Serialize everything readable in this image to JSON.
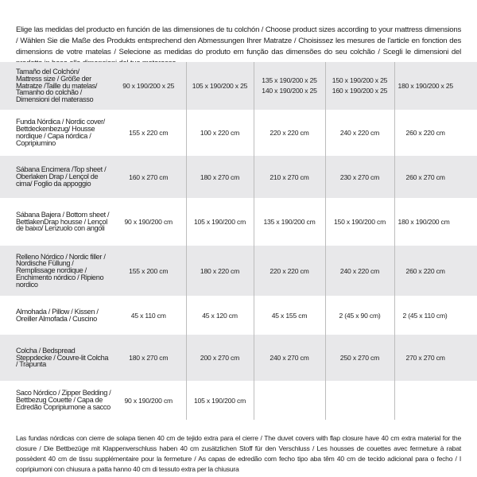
{
  "intro": "Elige las medidas del producto en función de las dimensiones de tu colchón / Choose product sizes according to your mattress dimensions / Wählen Sie die Maße des Produkts entsprechend den Abmessungen Ihrer Matratze / Choisissez les mesures de l'article en fonction des dimensions de votre matelas / Selecione as medidas do produto em função das dimensões do seu colchão / Scegli le dimensioni del prodotto in base alle dimensioni del tuo materasso",
  "header": {
    "label": "Tamaño del Colchón/ Mattress size / Größe der Matratze /Taille du matelas/ Tamanho do colchão / Dimensioni del materasso",
    "c1": "90 x 190/200 x 25",
    "c2": "105 x 190/200 x 25",
    "c3a": "135 x 190/200 x 25",
    "c3b": "140 x 190/200 x 25",
    "c4a": "150 x 190/200 x 25",
    "c4b": "160 x 190/200 x 25",
    "c5": "180 x 190/200 x 25"
  },
  "rows": [
    {
      "label": "Funda Nórdica /  Nordic cover/ Bettdeckenbezug/ Housse nordique  / Capa nórdica / Copripiumino",
      "values": [
        "155 x 220 cm",
        "100 x 220 cm",
        "220 x 220 cm",
        "240 x 220 cm",
        "260 x 220 cm"
      ]
    },
    {
      "label": "Sábana Encimera /Top sheet / Oberlaken Drap / Lençol de cima/ Foglio da appoggio",
      "values": [
        "160 x 270 cm",
        "180 x 270 cm",
        "210 x 270 cm",
        "230 x 270 cm",
        "260 x 270 cm"
      ]
    },
    {
      "label": "Sábana Bajera / Bottom sheet / BettlakenDrap housse / Lençol de baixo/ Lenzuolo con angoli",
      "values": [
        "90 x 190/200 cm",
        "105 x 190/200 cm",
        "135 x 190/200 cm",
        "150 x 190/200 cm",
        "180 x 190/200 cm"
      ]
    },
    {
      "label": "Relleno Nórdico / Nordic filler / Nordische Füllung / Remplissage nordique / Enchimento nórdico / Ripieno nordico",
      "values": [
        "155 x 200 cm",
        "180 x 220 cm",
        "220 x 220 cm",
        "240 x 220 cm",
        "260 x 220 cm"
      ]
    },
    {
      "label": "Almohada  / Pillow / Kissen / Oreiller Almofada / Cuscino",
      "values": [
        "45 x 110 cm",
        "45 x 120 cm",
        "45 x 155 cm",
        "2 (45 x 90 cm)",
        "2 (45 x 110 cm)"
      ]
    },
    {
      "label": "Colcha / Bedspread Steppdecke / Couvre-lit Colcha / Trapunta",
      "values": [
        "180 x 270 cm",
        "200 x 270 cm",
        "240 x 270 cm",
        "250 x 270 cm",
        "270 x 270 cm"
      ]
    },
    {
      "label": "Saco Nórdico / Zipper Bedding / Bettbezug Couette  / Capa de Edredão Copripiumone a sacco",
      "values": [
        "90 x 190/200 cm",
        "105 x 190/200 cm",
        "",
        "",
        ""
      ]
    }
  ],
  "note": "Las fundas nórdicas con cierre de solapa tienen 40 cm de tejido extra para el cierre  / The duvet covers with flap closure have 40 cm extra material for the closure / Die Bettbezüge mit Klappenverschluss haben 40 cm zusätzlichen Stoff für den Verschluss / Les housses de couettes avec fermeture à rabat possèdent 40 cm de tissu supplémentaire pour la fermeture / As capas de edredão com fecho tipo aba têm 40 cm de tecido adicional para o fecho / I copripiumoni con chiusura a patta hanno 40 cm di tessuto extra per la chiusura"
}
